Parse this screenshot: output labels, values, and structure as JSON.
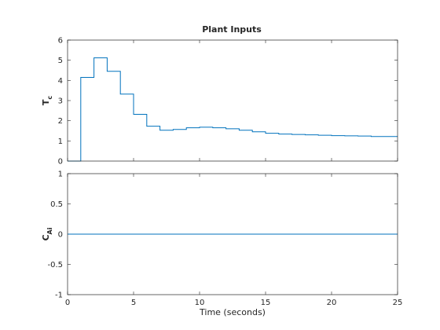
{
  "figure": {
    "title": "Plant Inputs"
  },
  "chart_data": [
    {
      "type": "line",
      "subtype": "stairs",
      "title": "Plant Inputs",
      "ylabel_main": "T",
      "ylabel_sub": "c",
      "xlim": [
        0,
        25
      ],
      "ylim": [
        0,
        6
      ],
      "xticks": [
        0,
        5,
        10,
        15,
        20,
        25
      ],
      "yticks": [
        0,
        1,
        2,
        3,
        4,
        5,
        6
      ],
      "ytick_labels": [
        "0",
        "1",
        "2",
        "3",
        "4",
        "5",
        "6"
      ],
      "show_xtick_labels": false,
      "grid": false,
      "color": "#0072BD",
      "series": [
        {
          "x": [
            0,
            1,
            2,
            3,
            4,
            5,
            6,
            7,
            8,
            9,
            10,
            11,
            12,
            13,
            14,
            15,
            16,
            17,
            18,
            19,
            20,
            21,
            22,
            23,
            24,
            25
          ],
          "y": [
            0,
            4.15,
            5.12,
            4.45,
            3.32,
            2.32,
            1.73,
            1.53,
            1.57,
            1.65,
            1.68,
            1.65,
            1.6,
            1.53,
            1.45,
            1.38,
            1.34,
            1.32,
            1.3,
            1.28,
            1.26,
            1.25,
            1.24,
            1.22,
            1.22,
            1.22
          ]
        }
      ]
    },
    {
      "type": "line",
      "subtype": "stairs",
      "ylabel_main": "C",
      "ylabel_sub": "Ai",
      "xlabel": "Time (seconds)",
      "xlim": [
        0,
        25
      ],
      "ylim": [
        -1,
        1
      ],
      "xticks": [
        0,
        5,
        10,
        15,
        20,
        25
      ],
      "xtick_labels": [
        "0",
        "5",
        "10",
        "15",
        "20",
        "25"
      ],
      "yticks": [
        -1,
        -0.5,
        0,
        0.5,
        1
      ],
      "ytick_labels": [
        "-1",
        "-0.5",
        "0",
        "0.5",
        "1"
      ],
      "show_xtick_labels": true,
      "grid": false,
      "color": "#0072BD",
      "series": [
        {
          "x": [
            0,
            25
          ],
          "y": [
            0,
            0
          ]
        }
      ]
    }
  ]
}
